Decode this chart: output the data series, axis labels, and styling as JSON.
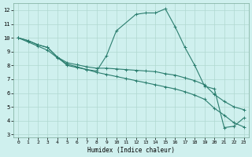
{
  "xlabel": "Humidex (Indice chaleur)",
  "xlim": [
    -0.5,
    23.5
  ],
  "ylim": [
    2.8,
    12.5
  ],
  "yticks": [
    3,
    4,
    5,
    6,
    7,
    8,
    9,
    10,
    11,
    12
  ],
  "xticks": [
    0,
    1,
    2,
    3,
    4,
    5,
    6,
    7,
    8,
    9,
    10,
    11,
    12,
    13,
    14,
    15,
    16,
    17,
    18,
    19,
    20,
    21,
    22,
    23
  ],
  "bg_color": "#cff0ee",
  "grid_color": "#b0d8d0",
  "line_color": "#2a7d6e",
  "curves": [
    {
      "x": [
        0,
        1,
        2,
        3,
        4,
        5,
        6,
        7,
        8,
        9,
        10,
        12,
        13,
        14,
        15,
        16,
        17,
        18,
        19,
        20,
        21,
        22,
        23
      ],
      "y": [
        10,
        9.8,
        9.5,
        9.3,
        8.6,
        8.0,
        7.85,
        7.7,
        7.6,
        8.7,
        10.5,
        11.7,
        11.8,
        11.8,
        12.1,
        10.8,
        9.3,
        8.0,
        6.5,
        6.3,
        3.5,
        3.6,
        4.2
      ]
    },
    {
      "x": [
        0,
        1,
        2,
        3,
        4,
        5,
        6,
        7,
        8,
        9,
        10,
        11,
        12,
        13,
        14,
        15,
        16,
        17,
        18,
        19,
        20,
        21,
        22,
        23
      ],
      "y": [
        10,
        9.8,
        9.5,
        9.3,
        8.6,
        8.2,
        8.05,
        7.9,
        7.8,
        7.8,
        7.75,
        7.7,
        7.65,
        7.6,
        7.55,
        7.4,
        7.3,
        7.1,
        6.9,
        6.6,
        5.9,
        5.4,
        5.0,
        4.8
      ]
    },
    {
      "x": [
        0,
        1,
        2,
        3,
        4,
        5,
        6,
        7,
        8,
        9,
        10,
        11,
        12,
        13,
        14,
        15,
        16,
        17,
        18,
        19,
        20,
        21,
        22,
        23
      ],
      "y": [
        10,
        9.7,
        9.4,
        9.1,
        8.55,
        8.1,
        7.9,
        7.7,
        7.5,
        7.35,
        7.2,
        7.05,
        6.9,
        6.75,
        6.6,
        6.45,
        6.3,
        6.1,
        5.85,
        5.55,
        4.9,
        4.4,
        3.85,
        3.55
      ]
    }
  ]
}
